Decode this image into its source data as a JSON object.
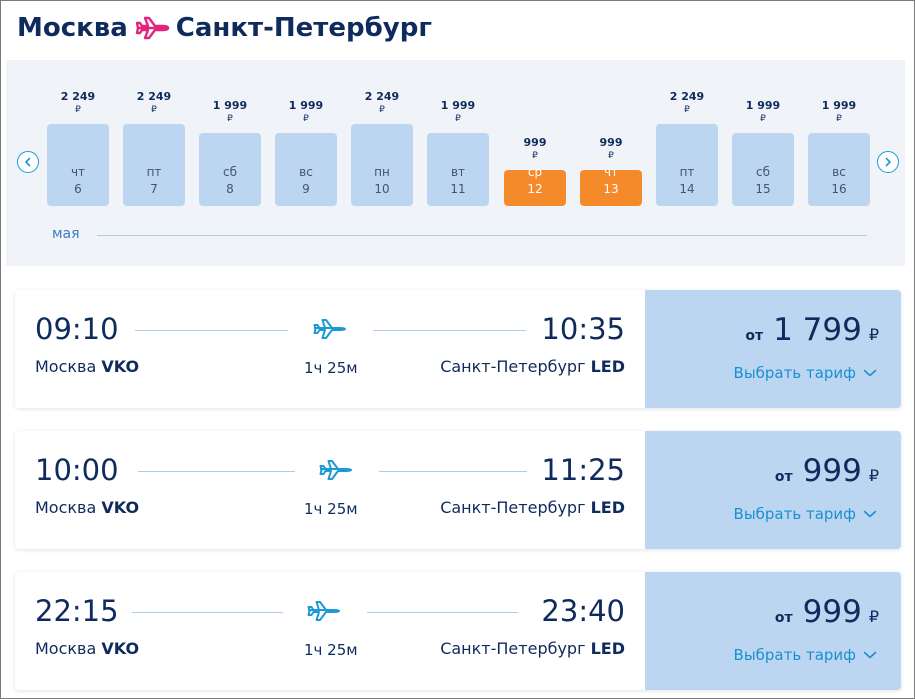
{
  "header": {
    "from_city": "Москва",
    "to_city": "Санкт-Петербург"
  },
  "colors": {
    "accent_pink": "#e0257f",
    "navy": "#0f2a5c",
    "bar": "#bcd6f2",
    "selected_bar": "#f58a2b",
    "link": "#1c8fd0"
  },
  "calendar": {
    "month_label": "мая",
    "currency_symbol": "₽",
    "days": [
      {
        "price": "2 249",
        "dow": "чт",
        "day": "6",
        "selected": false,
        "level": 0.71
      },
      {
        "price": "2 249",
        "dow": "пт",
        "day": "7",
        "selected": false,
        "level": 0.71
      },
      {
        "price": "1 999",
        "dow": "сб",
        "day": "8",
        "selected": false,
        "level": 0.63
      },
      {
        "price": "1 999",
        "dow": "вс",
        "day": "9",
        "selected": false,
        "level": 0.63
      },
      {
        "price": "2 249",
        "dow": "пн",
        "day": "10",
        "selected": false,
        "level": 0.71
      },
      {
        "price": "1 999",
        "dow": "вт",
        "day": "11",
        "selected": false,
        "level": 0.63
      },
      {
        "price": "999",
        "dow": "ср",
        "day": "12",
        "selected": true,
        "level": 0.31
      },
      {
        "price": "999",
        "dow": "чт",
        "day": "13",
        "selected": true,
        "level": 0.31
      },
      {
        "price": "2 249",
        "dow": "пт",
        "day": "14",
        "selected": false,
        "level": 0.71
      },
      {
        "price": "1 999",
        "dow": "сб",
        "day": "15",
        "selected": false,
        "level": 0.63
      },
      {
        "price": "1 999",
        "dow": "вс",
        "day": "16",
        "selected": false,
        "level": 0.63
      }
    ]
  },
  "flights": [
    {
      "dep_time": "09:10",
      "arr_time": "10:35",
      "dep_city": "Москва",
      "dep_code": "VKO",
      "arr_city": "Санкт-Петербург",
      "arr_code": "LED",
      "duration": "1ч 25м",
      "from_label": "от",
      "price": "1 799",
      "currency": "₽",
      "tariff_label": "Выбрать тариф"
    },
    {
      "dep_time": "10:00",
      "arr_time": "11:25",
      "dep_city": "Москва",
      "dep_code": "VKO",
      "arr_city": "Санкт-Петербург",
      "arr_code": "LED",
      "duration": "1ч 25м",
      "from_label": "от",
      "price": "999",
      "currency": "₽",
      "tariff_label": "Выбрать тариф"
    },
    {
      "dep_time": "22:15",
      "arr_time": "23:40",
      "dep_city": "Москва",
      "dep_code": "VKO",
      "arr_city": "Санкт-Петербург",
      "arr_code": "LED",
      "duration": "1ч 25м",
      "from_label": "от",
      "price": "999",
      "currency": "₽",
      "tariff_label": "Выбрать тариф"
    }
  ]
}
